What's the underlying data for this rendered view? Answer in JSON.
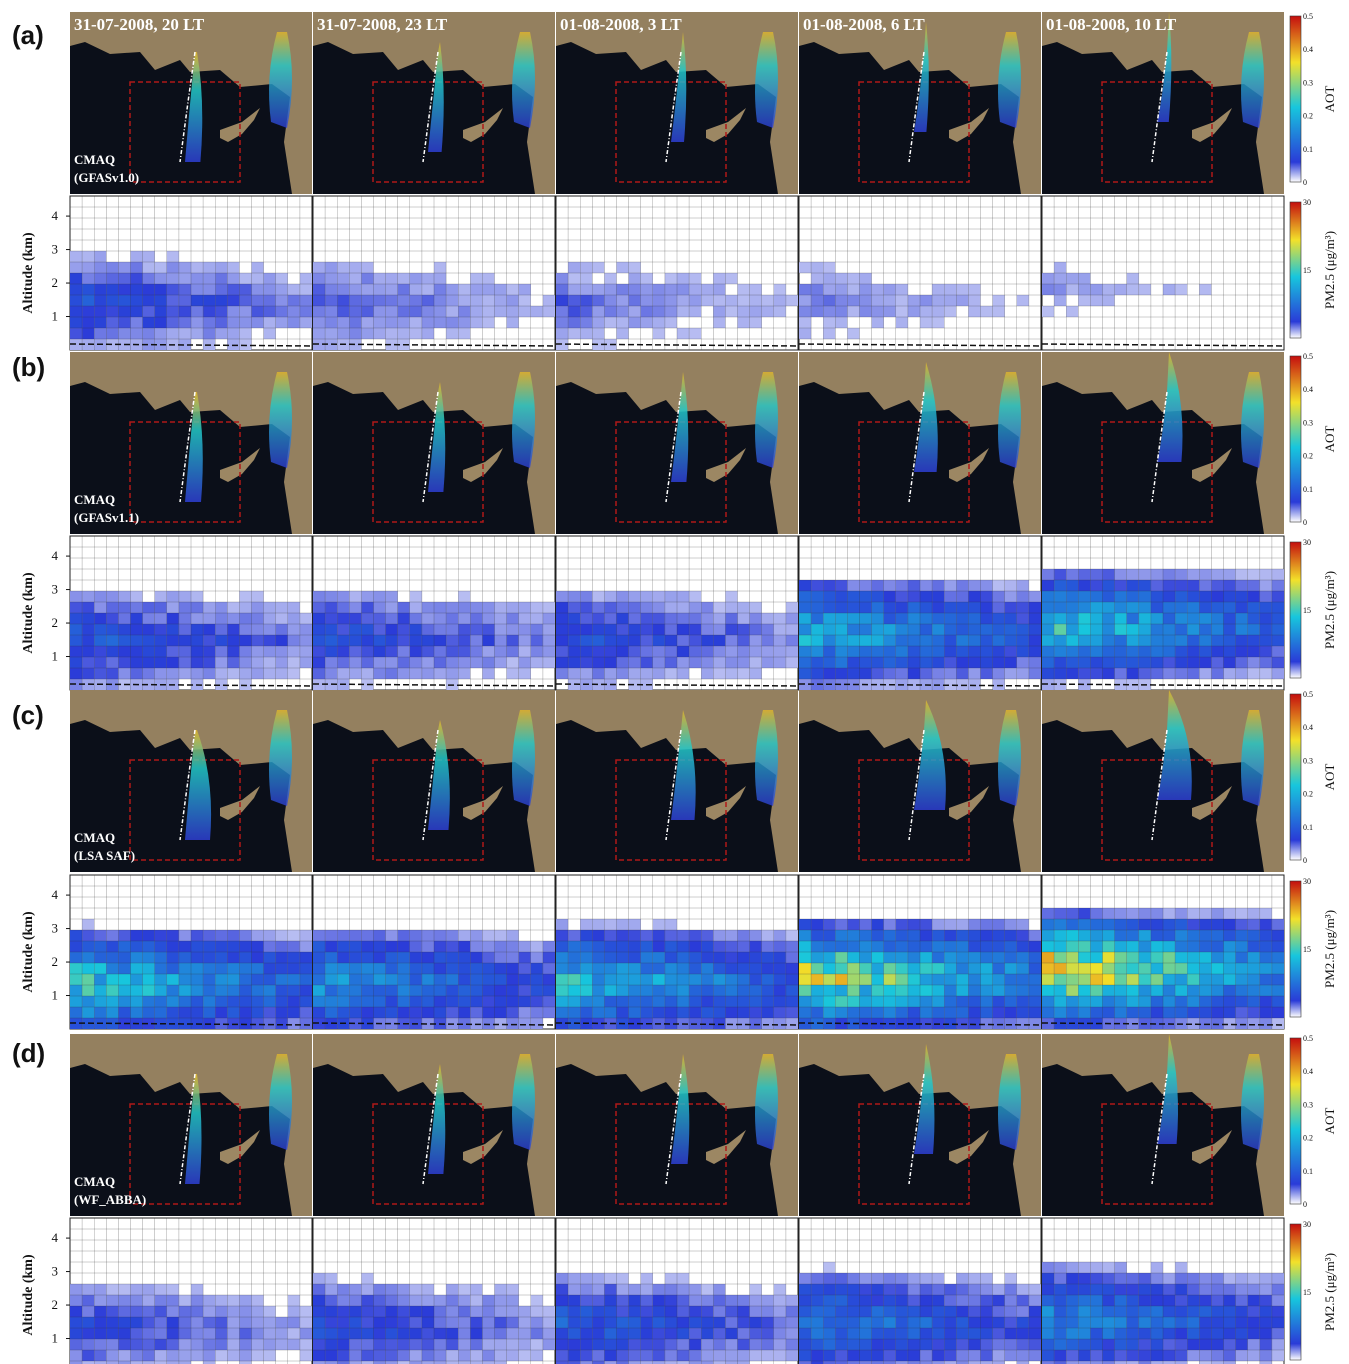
{
  "figure": {
    "panel_labels": [
      "(a)",
      "(b)",
      "(c)",
      "(d)"
    ],
    "column_headers": [
      "31-07-2008, 20 LT",
      "31-07-2008, 23 LT",
      "01-08-2008, 3 LT",
      "01-08-2008, 6 LT",
      "01-08-2008, 10 LT"
    ],
    "map_labels": [
      [
        "CMAQ",
        "(GFASv1.0)"
      ],
      [
        "CMAQ",
        "(GFASv1.1)"
      ],
      [
        "CMAQ",
        "(LSA SAF)"
      ],
      [
        "CMAQ",
        "(WF_ABBA)"
      ]
    ],
    "aot_colorbar": {
      "title": "AOT",
      "ticks": [
        "0.5",
        "0.4",
        "0.3",
        "0.2",
        "0.1",
        "0"
      ]
    },
    "pm_colorbar": {
      "title": "PM2.5 (μg/m³)",
      "ticks": [
        "30",
        "15"
      ]
    },
    "profile_axis": {
      "ylabel": "Altitude (km)",
      "ticks": [
        "1",
        "2",
        "3",
        "4"
      ]
    },
    "colors": {
      "map_background": "#0b0f19",
      "land": "#9c8763",
      "box_outline": "#b01818",
      "colormap": [
        "#ffffff",
        "#2a3bd8",
        "#17c6dd",
        "#f3e12a",
        "#c40e0e"
      ]
    },
    "profile_intensity": [
      [
        [
          0.18,
          0.12,
          0.1,
          0.08,
          0.06
        ],
        [
          0.12,
          0.12,
          0.12,
          0.18,
          0.45
        ]
      ],
      [
        [
          0.2,
          0.18,
          0.18,
          0.42,
          0.48
        ],
        [
          0.2,
          0.25,
          0.25,
          0.35,
          0.5
        ]
      ],
      [
        [
          0.5,
          0.35,
          0.45,
          0.7,
          0.8
        ],
        [
          0.1,
          0.12,
          0.15,
          0.25,
          0.4
        ]
      ],
      [
        [
          0.15,
          0.18,
          0.22,
          0.3,
          0.32
        ],
        [
          0.05,
          0.08,
          0.1,
          0.15,
          0.25
        ]
      ]
    ]
  }
}
